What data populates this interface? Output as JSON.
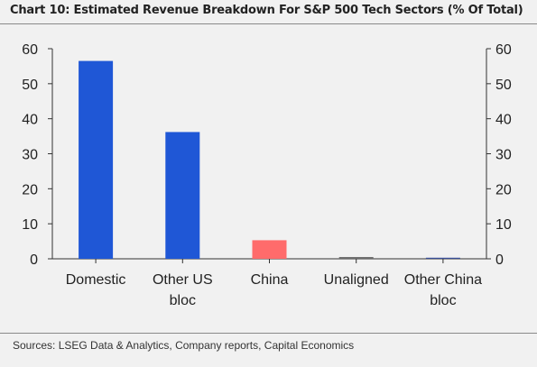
{
  "title": "Chart 10: Estimated Revenue Breakdown For S&P 500 Tech Sectors (% Of Total)",
  "source": "Sources: LSEG Data & Analytics, Company reports, Capital Economics",
  "chart_data": {
    "type": "bar",
    "categories": [
      [
        "Domestic"
      ],
      [
        "Other US",
        "bloc"
      ],
      [
        "China"
      ],
      [
        "Unaligned"
      ],
      [
        "Other China",
        "bloc"
      ]
    ],
    "values": [
      56.5,
      36.2,
      5.3,
      0.5,
      0.2
    ],
    "bar_colors": [
      "#1f57d6",
      "#1f57d6",
      "#ff6b6b",
      "#6b6b6b",
      "#3a4f9a"
    ],
    "ylim": [
      0,
      60
    ],
    "yticks": [
      0,
      10,
      20,
      30,
      40,
      50,
      60
    ],
    "dual_y_axis": true,
    "grid": false
  }
}
